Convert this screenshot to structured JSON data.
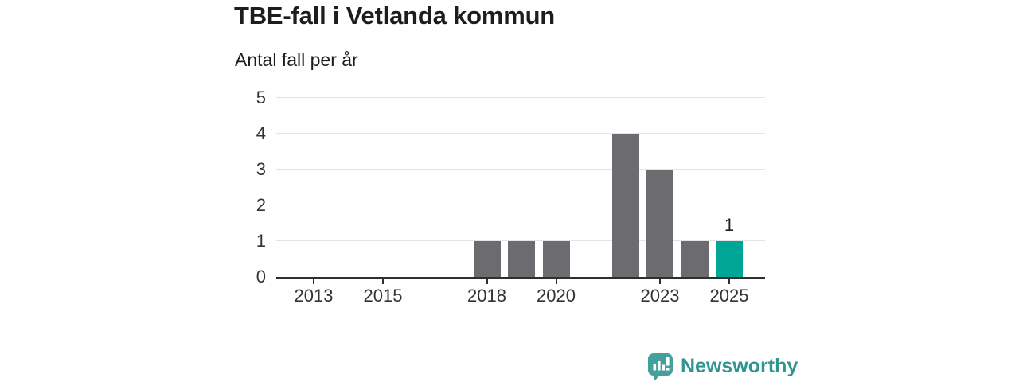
{
  "chart_data": {
    "type": "bar",
    "title": "TBE-fall i Vetlanda kommun",
    "subtitle": "Antal fall per år",
    "categories": [
      2012,
      2013,
      2014,
      2015,
      2016,
      2017,
      2018,
      2019,
      2020,
      2021,
      2022,
      2023,
      2024,
      2025
    ],
    "values": [
      0,
      0,
      0,
      0,
      0,
      0,
      1,
      1,
      1,
      0,
      4,
      3,
      1,
      1
    ],
    "highlight_category": 2025,
    "highlight_value_label": "1",
    "x_tick_labels": [
      "2013",
      "2015",
      "2018",
      "2020",
      "2023",
      "2025"
    ],
    "y_ticks": [
      0,
      1,
      2,
      3,
      4,
      5
    ],
    "ylim": [
      0,
      5
    ],
    "xlabel": "",
    "ylabel": "",
    "grid": true,
    "legend": "none",
    "bar_color": "#6b6b70",
    "highlight_color": "#00a695",
    "gridline_color": "#e4e4e4",
    "axis_color": "#2f2f2f"
  },
  "footer": {
    "brand": "Newsworthy",
    "icon": "bar-chart-speech-bubble",
    "icon_color": "#44a09a",
    "text_color": "#2f958f"
  }
}
